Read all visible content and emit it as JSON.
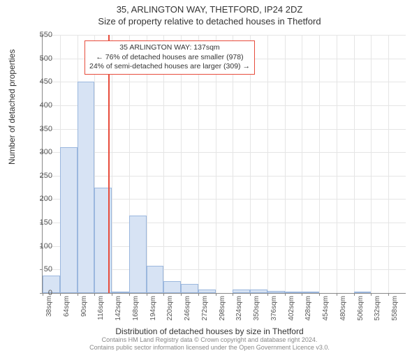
{
  "title_line1": "35, ARLINGTON WAY, THETFORD, IP24 2DZ",
  "title_line2": "Size of property relative to detached houses in Thetford",
  "ylabel": "Number of detached properties",
  "xlabel": "Distribution of detached houses by size in Thetford",
  "chart": {
    "type": "histogram",
    "background_color": "#ffffff",
    "grid_color": "#e5e5e5",
    "axis_color": "#888888",
    "bar_fill": "#d7e3f4",
    "bar_border": "#9bb7de",
    "marker_color": "#e74c3c",
    "ylim": [
      0,
      550
    ],
    "ytick_step": 50,
    "x_start": 38,
    "x_step": 26,
    "x_unit": "sqm",
    "x_count": 21,
    "bars": [
      37,
      310,
      450,
      225,
      3,
      165,
      58,
      25,
      20,
      8,
      0,
      8,
      7,
      5,
      3,
      2,
      0,
      0,
      2,
      0,
      0
    ],
    "marker_x": 137,
    "label_fontsize": 12,
    "tick_fontsize": 11
  },
  "annotation": {
    "line1": "35 ARLINGTON WAY: 137sqm",
    "line2": "← 76% of detached houses are smaller (978)",
    "line3": "24% of semi-detached houses are larger (309) →"
  },
  "footer_line1": "Contains HM Land Registry data © Crown copyright and database right 2024.",
  "footer_line2": "Contains public sector information licensed under the Open Government Licence v3.0."
}
